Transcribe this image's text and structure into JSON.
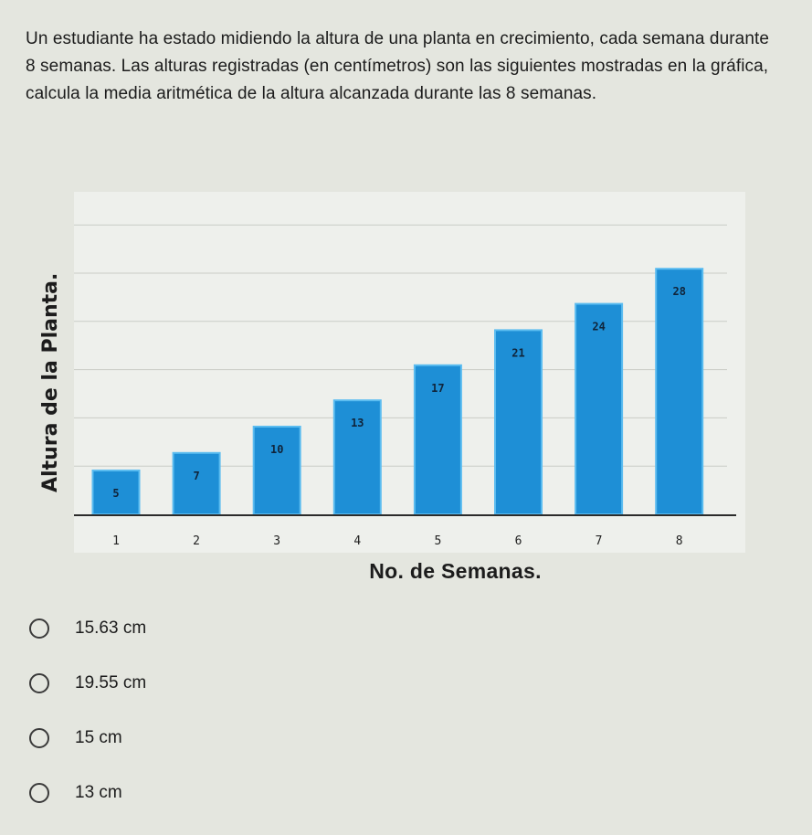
{
  "question": {
    "text": "Un estudiante ha estado midiendo la altura de una planta en crecimiento, cada semana durante 8 semanas. Las alturas registradas (en centímetros) son las siguientes mostradas en la gráfica, calcula la media aritmética de la altura alcanzada durante las 8 semanas."
  },
  "options": [
    {
      "label": "15.63 cm"
    },
    {
      "label": "19.55 cm"
    },
    {
      "label": "15 cm"
    },
    {
      "label": "13 cm"
    }
  ],
  "chart_data": {
    "type": "bar",
    "categories": [
      "1",
      "2",
      "3",
      "4",
      "5",
      "6",
      "7",
      "8"
    ],
    "values": [
      5,
      7,
      10,
      13,
      17,
      21,
      24,
      28
    ],
    "data_labels": [
      "5",
      "7",
      "10",
      "13",
      "17",
      "21",
      "24",
      "28"
    ],
    "xlabel": "No. de Semanas.",
    "ylabel": "Altura de la Planta.",
    "ylim": [
      0,
      32
    ],
    "grid": true,
    "colors": {
      "bar_fill": "#1e8fd6",
      "bar_edge": "#5bbcf0",
      "plot_bg": "#eef0ec",
      "gridline": "#c9ccc6"
    }
  }
}
